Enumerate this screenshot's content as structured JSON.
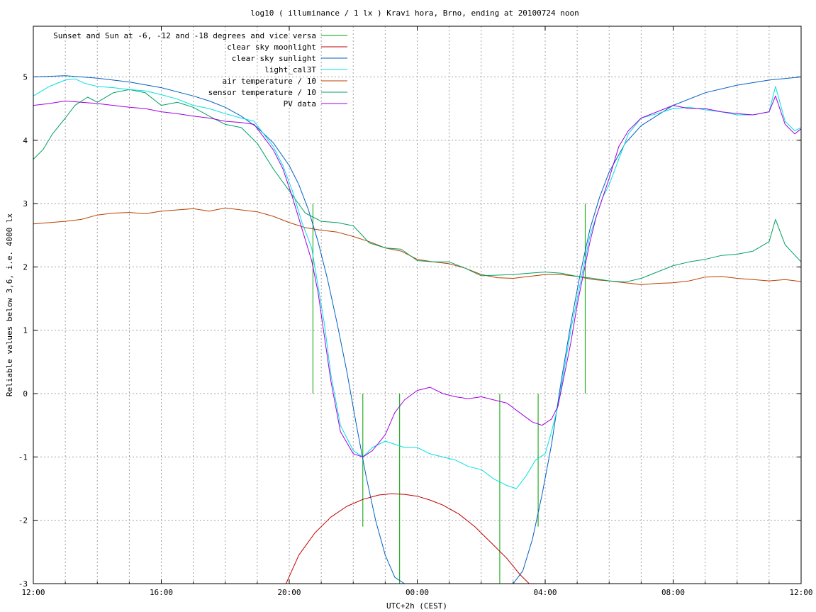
{
  "chart_data": {
    "type": "line",
    "title": "log10 ( illuminance / 1 lx ) Kravi hora, Brno, ending at 20100724 noon",
    "xlabel": "UTC+2h (CEST)",
    "ylabel": "Reliable values below 3,6, i.e. 4000 lx",
    "x_unit": "hours",
    "xlim": [
      12,
      36
    ],
    "ylim": [
      -3,
      5.8
    ],
    "grid": true,
    "legend_position": "top-left",
    "x_ticks": [
      {
        "value": 12,
        "label": "12:00"
      },
      {
        "value": 16,
        "label": "16:00"
      },
      {
        "value": 20,
        "label": "20:00"
      },
      {
        "value": 24,
        "label": "00:00"
      },
      {
        "value": 28,
        "label": "04:00"
      },
      {
        "value": 32,
        "label": "08:00"
      },
      {
        "value": 36,
        "label": "12:00"
      }
    ],
    "x_grid": [
      13,
      14,
      15,
      16,
      17,
      18,
      19,
      20,
      21,
      22,
      23,
      24,
      25,
      26,
      27,
      28,
      29,
      30,
      31,
      32,
      33,
      34,
      35
    ],
    "y_ticks": [
      {
        "value": -3,
        "label": "-3"
      },
      {
        "value": -2,
        "label": "-2"
      },
      {
        "value": -1,
        "label": "-1"
      },
      {
        "value": 0,
        "label": "0"
      },
      {
        "value": 1,
        "label": "1"
      },
      {
        "value": 2,
        "label": "2"
      },
      {
        "value": 3,
        "label": "3"
      },
      {
        "value": 4,
        "label": "4"
      },
      {
        "value": 5,
        "label": "5"
      }
    ],
    "series": [
      {
        "name": "Sunset and Sun at -6, -12 and -18 degrees and vice versa",
        "color": "#00a000",
        "type": "impulse",
        "x": [
          20.74,
          22.3,
          23.45,
          26.58,
          27.78,
          29.25
        ],
        "y": [
          3.0,
          -2.1,
          -3.0,
          -3.0,
          -2.1,
          3.0
        ],
        "base": 0
      },
      {
        "name": "clear sky moonlight",
        "color": "#c00000",
        "type": "line",
        "x": [
          19.9,
          20.3,
          20.8,
          21.3,
          21.8,
          22.3,
          22.8,
          23.2,
          23.6,
          24.0,
          24.4,
          24.8,
          25.3,
          25.8,
          26.3,
          26.8,
          27.2,
          27.5
        ],
        "y": [
          -3.0,
          -2.55,
          -2.2,
          -1.95,
          -1.78,
          -1.67,
          -1.6,
          -1.58,
          -1.59,
          -1.62,
          -1.68,
          -1.76,
          -1.9,
          -2.1,
          -2.35,
          -2.6,
          -2.85,
          -3.0
        ]
      },
      {
        "name": "clear sky sunlight",
        "color": "#0060c0",
        "type": "line",
        "x": [
          12,
          13,
          14,
          15,
          16,
          17,
          17.5,
          18,
          18.5,
          19,
          19.5,
          20,
          20.3,
          20.6,
          20.9,
          21.2,
          21.5,
          21.8,
          22.1,
          22.4,
          22.7,
          23.0,
          23.3,
          23.6,
          27.0,
          27.3,
          27.6,
          27.9,
          28.2,
          28.5,
          28.8,
          29.1,
          29.4,
          29.7,
          30.0,
          30.5,
          31,
          32,
          33,
          34,
          35,
          36
        ],
        "y": [
          5.0,
          5.02,
          4.98,
          4.92,
          4.83,
          4.7,
          4.62,
          4.52,
          4.38,
          4.2,
          3.96,
          3.6,
          3.3,
          2.9,
          2.4,
          1.8,
          1.1,
          0.35,
          -0.5,
          -1.3,
          -2.0,
          -2.55,
          -2.9,
          -3.0,
          -3.0,
          -2.8,
          -2.3,
          -1.6,
          -0.8,
          0.2,
          1.1,
          1.9,
          2.6,
          3.1,
          3.5,
          3.95,
          4.23,
          4.55,
          4.75,
          4.87,
          4.95,
          5.0
        ]
      },
      {
        "name": "light_cal3T",
        "color": "#00e0e0",
        "type": "line",
        "x": [
          12,
          12.5,
          13,
          13.3,
          13.6,
          14,
          14.5,
          15,
          15.5,
          16,
          16.5,
          17,
          17.5,
          18,
          18.5,
          18.9,
          19.2,
          19.5,
          19.8,
          20.1,
          20.4,
          20.7,
          20.9,
          21.1,
          21.3,
          21.6,
          22.0,
          22.3,
          22.6,
          23.0,
          23.3,
          23.6,
          24.0,
          24.4,
          24.8,
          25.2,
          25.6,
          26.0,
          26.4,
          26.8,
          27.1,
          27.4,
          27.7,
          28.0,
          28.2,
          28.4,
          28.6,
          28.8,
          29.0,
          29.2,
          29.4,
          29.6,
          29.8,
          30.0,
          30.3,
          30.6,
          31.0,
          31.5,
          32.0,
          32.5,
          33.0,
          33.5,
          34.0,
          34.5,
          35.0,
          35.2,
          35.5,
          35.8,
          36.0
        ],
        "y": [
          4.7,
          4.85,
          4.95,
          4.97,
          4.9,
          4.85,
          4.83,
          4.8,
          4.78,
          4.72,
          4.65,
          4.55,
          4.5,
          4.42,
          4.35,
          4.3,
          4.1,
          3.9,
          3.6,
          3.2,
          2.7,
          2.3,
          1.7,
          1.1,
          0.3,
          -0.5,
          -0.9,
          -1.0,
          -0.85,
          -0.75,
          -0.8,
          -0.85,
          -0.85,
          -0.95,
          -1.0,
          -1.05,
          -1.15,
          -1.2,
          -1.35,
          -1.45,
          -1.5,
          -1.3,
          -1.05,
          -0.95,
          -0.6,
          -0.2,
          0.4,
          1.0,
          1.5,
          2.0,
          2.5,
          2.8,
          3.1,
          3.3,
          3.7,
          4.1,
          4.35,
          4.42,
          4.5,
          4.52,
          4.48,
          4.45,
          4.4,
          4.4,
          4.45,
          4.85,
          4.3,
          4.15,
          4.2
        ]
      },
      {
        "name": "air temperature / 10",
        "color": "#b84000",
        "type": "line",
        "x": [
          12,
          12.5,
          13,
          13.5,
          14,
          14.5,
          15,
          15.5,
          16,
          16.5,
          17,
          17.5,
          18,
          18.5,
          19,
          19.5,
          20,
          20.5,
          21,
          21.5,
          22,
          22.5,
          23,
          23.5,
          24,
          24.5,
          25,
          25.5,
          26,
          26.5,
          27,
          27.5,
          28,
          28.5,
          29,
          29.5,
          30,
          30.5,
          31,
          31.5,
          32,
          32.5,
          33,
          33.5,
          34,
          34.5,
          35,
          35.5,
          36
        ],
        "y": [
          2.68,
          2.7,
          2.72,
          2.75,
          2.82,
          2.85,
          2.86,
          2.84,
          2.88,
          2.9,
          2.92,
          2.88,
          2.93,
          2.9,
          2.87,
          2.8,
          2.7,
          2.62,
          2.58,
          2.55,
          2.48,
          2.4,
          2.3,
          2.25,
          2.12,
          2.08,
          2.05,
          1.98,
          1.88,
          1.83,
          1.82,
          1.85,
          1.88,
          1.88,
          1.85,
          1.8,
          1.78,
          1.75,
          1.72,
          1.74,
          1.75,
          1.78,
          1.84,
          1.85,
          1.82,
          1.8,
          1.78,
          1.8,
          1.77
        ]
      },
      {
        "name": "sensor temperature / 10",
        "color": "#00a060",
        "type": "line",
        "x": [
          12,
          12.3,
          12.6,
          13,
          13.3,
          13.7,
          14,
          14.5,
          15,
          15.5,
          16,
          16.5,
          17,
          17.5,
          18,
          18.5,
          19,
          19.5,
          20,
          20.5,
          21,
          21.5,
          22,
          22.5,
          23,
          23.5,
          24,
          24.5,
          25,
          25.5,
          26,
          26.5,
          27,
          27.5,
          28,
          28.5,
          29,
          29.5,
          30,
          30.5,
          31,
          31.5,
          32,
          32.5,
          33,
          33.5,
          34,
          34.5,
          35,
          35.2,
          35.5,
          36
        ],
        "y": [
          3.7,
          3.85,
          4.1,
          4.35,
          4.55,
          4.68,
          4.6,
          4.75,
          4.8,
          4.75,
          4.55,
          4.6,
          4.52,
          4.38,
          4.25,
          4.2,
          3.95,
          3.55,
          3.2,
          2.85,
          2.72,
          2.7,
          2.65,
          2.38,
          2.3,
          2.28,
          2.1,
          2.08,
          2.08,
          1.98,
          1.86,
          1.87,
          1.88,
          1.9,
          1.92,
          1.9,
          1.85,
          1.82,
          1.78,
          1.76,
          1.82,
          1.92,
          2.02,
          2.08,
          2.12,
          2.18,
          2.2,
          2.25,
          2.4,
          2.75,
          2.35,
          2.08
        ]
      },
      {
        "name": "PV data",
        "color": "#a000e0",
        "type": "line",
        "x": [
          12,
          12.5,
          13,
          13.5,
          14,
          14.5,
          15,
          15.5,
          16,
          16.5,
          17,
          17.5,
          18,
          18.5,
          18.9,
          19.2,
          19.5,
          19.8,
          20.1,
          20.4,
          20.7,
          20.9,
          21.1,
          21.3,
          21.6,
          22.0,
          22.3,
          22.6,
          23.0,
          23.3,
          23.6,
          24.0,
          24.4,
          24.8,
          25.2,
          25.6,
          26.0,
          26.4,
          26.8,
          27.2,
          27.6,
          27.9,
          28.2,
          28.4,
          28.6,
          28.8,
          29.0,
          29.2,
          29.4,
          29.6,
          29.8,
          30.0,
          30.3,
          30.6,
          31.0,
          31.5,
          32.0,
          32.5,
          33.0,
          33.5,
          34.0,
          34.5,
          35.0,
          35.2,
          35.5,
          35.8,
          36.0
        ],
        "y": [
          4.55,
          4.58,
          4.62,
          4.6,
          4.58,
          4.55,
          4.52,
          4.5,
          4.45,
          4.42,
          4.38,
          4.35,
          4.3,
          4.28,
          4.25,
          4.05,
          3.85,
          3.55,
          3.1,
          2.6,
          2.1,
          1.6,
          0.9,
          0.2,
          -0.6,
          -0.95,
          -1.0,
          -0.9,
          -0.65,
          -0.3,
          -0.1,
          0.05,
          0.1,
          0.0,
          -0.05,
          -0.08,
          -0.05,
          -0.1,
          -0.15,
          -0.3,
          -0.45,
          -0.5,
          -0.4,
          -0.2,
          0.3,
          0.8,
          1.4,
          1.9,
          2.4,
          2.8,
          3.1,
          3.4,
          3.9,
          4.15,
          4.35,
          4.45,
          4.55,
          4.5,
          4.5,
          4.45,
          4.42,
          4.4,
          4.45,
          4.7,
          4.25,
          4.1,
          4.18
        ]
      }
    ]
  }
}
